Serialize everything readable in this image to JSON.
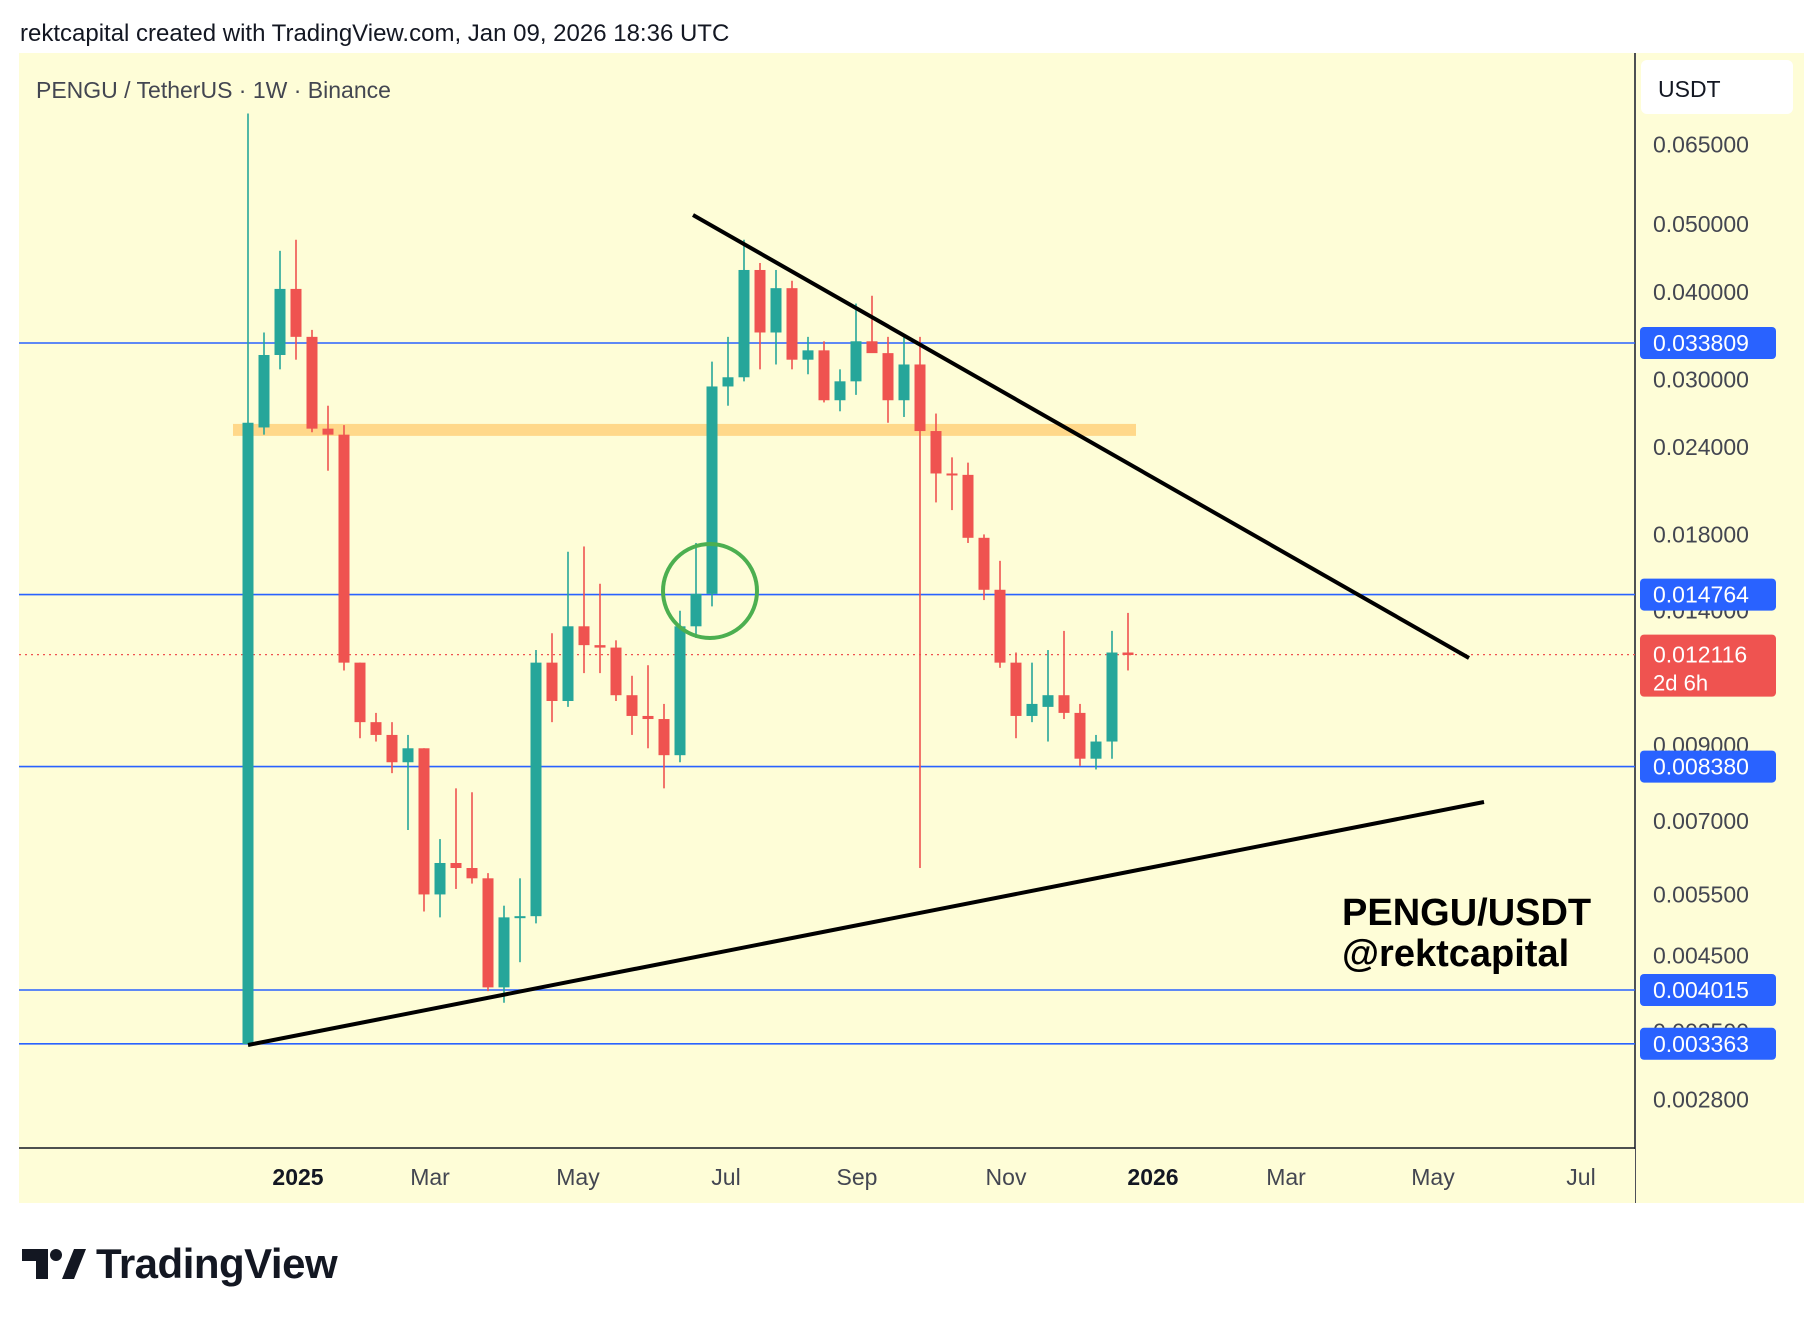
{
  "header": {
    "caption": "rektcapital created with TradingView.com, Jan 09, 2026 18:36 UTC"
  },
  "symbol_line": "PENGU / TetherUS · 1W · Binance",
  "currency_button": "USDT",
  "watermark": {
    "line1": "PENGU/USDT",
    "line2": "@rektcapital"
  },
  "brand": "TradingView",
  "colors": {
    "background": "#FEFDD7",
    "up": "#26A69A",
    "down": "#EF5350",
    "hline": "#2962FF",
    "label": "#2962FF",
    "zone": "#FFD88A",
    "circle": "#4CAF50",
    "trend": "#000000"
  },
  "chart_data": {
    "type": "candlestick",
    "scale": "log",
    "symbol": "PENGU / TetherUS",
    "interval": "1W",
    "exchange": "Binance",
    "y_ticks": [
      "0.065000",
      "0.050000",
      "0.040000",
      "0.030000",
      "0.024000",
      "0.018000",
      "0.014000",
      "0.009000",
      "0.007000",
      "0.005500",
      "0.004500",
      "0.003500",
      "0.002800"
    ],
    "x_ticks": [
      {
        "label": "2025",
        "bold": true
      },
      {
        "label": "Mar",
        "bold": false
      },
      {
        "label": "May",
        "bold": false
      },
      {
        "label": "Jul",
        "bold": false
      },
      {
        "label": "Sep",
        "bold": false
      },
      {
        "label": "Nov",
        "bold": false
      },
      {
        "label": "2026",
        "bold": true
      },
      {
        "label": "Mar",
        "bold": false
      },
      {
        "label": "May",
        "bold": false
      },
      {
        "label": "Jul",
        "bold": false
      }
    ],
    "horizontal_levels": [
      "0.033809",
      "0.014764",
      "0.008380",
      "0.004015",
      "0.003363"
    ],
    "current_price": {
      "value": "0.012116",
      "countdown": "2d 6h"
    },
    "resistance_zone": [
      0.0249,
      0.0259
    ],
    "candles": [
      {
        "o": 0.00336,
        "h": 0.072,
        "l": 0.00336,
        "c": 0.026
      },
      {
        "o": 0.0256,
        "h": 0.035,
        "l": 0.025,
        "c": 0.0325
      },
      {
        "o": 0.0325,
        "h": 0.0458,
        "l": 0.031,
        "c": 0.0404
      },
      {
        "o": 0.0404,
        "h": 0.0475,
        "l": 0.032,
        "c": 0.0345
      },
      {
        "o": 0.0345,
        "h": 0.0353,
        "l": 0.0252,
        "c": 0.0255
      },
      {
        "o": 0.0255,
        "h": 0.0275,
        "l": 0.0222,
        "c": 0.025
      },
      {
        "o": 0.025,
        "h": 0.0258,
        "l": 0.0115,
        "c": 0.0118
      },
      {
        "o": 0.0118,
        "h": 0.0118,
        "l": 0.0092,
        "c": 0.0097
      },
      {
        "o": 0.0097,
        "h": 0.01,
        "l": 0.0091,
        "c": 0.0093
      },
      {
        "o": 0.0093,
        "h": 0.0097,
        "l": 0.0082,
        "c": 0.0085
      },
      {
        "o": 0.0085,
        "h": 0.0093,
        "l": 0.0068,
        "c": 0.0089
      },
      {
        "o": 0.0089,
        "h": 0.0089,
        "l": 0.0052,
        "c": 0.0055
      },
      {
        "o": 0.0055,
        "h": 0.0066,
        "l": 0.0051,
        "c": 0.0061
      },
      {
        "o": 0.0061,
        "h": 0.0078,
        "l": 0.0056,
        "c": 0.006
      },
      {
        "o": 0.006,
        "h": 0.0077,
        "l": 0.0057,
        "c": 0.0058
      },
      {
        "o": 0.0058,
        "h": 0.0059,
        "l": 0.004,
        "c": 0.00405
      },
      {
        "o": 0.00405,
        "h": 0.0053,
        "l": 0.00385,
        "c": 0.0051
      },
      {
        "o": 0.0051,
        "h": 0.0058,
        "l": 0.0044,
        "c": 0.00512
      },
      {
        "o": 0.00512,
        "h": 0.0123,
        "l": 0.005,
        "c": 0.0118
      },
      {
        "o": 0.0118,
        "h": 0.013,
        "l": 0.0097,
        "c": 0.0104
      },
      {
        "o": 0.0104,
        "h": 0.017,
        "l": 0.0102,
        "c": 0.0133
      },
      {
        "o": 0.0133,
        "h": 0.0173,
        "l": 0.0114,
        "c": 0.0125
      },
      {
        "o": 0.0125,
        "h": 0.0153,
        "l": 0.0114,
        "c": 0.0124
      },
      {
        "o": 0.0124,
        "h": 0.0127,
        "l": 0.0104,
        "c": 0.0106
      },
      {
        "o": 0.0106,
        "h": 0.0113,
        "l": 0.0093,
        "c": 0.0099
      },
      {
        "o": 0.0099,
        "h": 0.0117,
        "l": 0.0089,
        "c": 0.0098
      },
      {
        "o": 0.0098,
        "h": 0.0103,
        "l": 0.0078,
        "c": 0.0087
      },
      {
        "o": 0.0087,
        "h": 0.014,
        "l": 0.0085,
        "c": 0.0133
      },
      {
        "o": 0.0133,
        "h": 0.0175,
        "l": 0.0128,
        "c": 0.0148
      },
      {
        "o": 0.0148,
        "h": 0.0318,
        "l": 0.0142,
        "c": 0.0293
      },
      {
        "o": 0.0293,
        "h": 0.0345,
        "l": 0.0275,
        "c": 0.0302
      },
      {
        "o": 0.0302,
        "h": 0.0475,
        "l": 0.0298,
        "c": 0.043
      },
      {
        "o": 0.043,
        "h": 0.044,
        "l": 0.031,
        "c": 0.035
      },
      {
        "o": 0.035,
        "h": 0.043,
        "l": 0.0315,
        "c": 0.0405
      },
      {
        "o": 0.0405,
        "h": 0.0415,
        "l": 0.031,
        "c": 0.032
      },
      {
        "o": 0.032,
        "h": 0.0345,
        "l": 0.0305,
        "c": 0.033
      },
      {
        "o": 0.033,
        "h": 0.034,
        "l": 0.0278,
        "c": 0.028
      },
      {
        "o": 0.028,
        "h": 0.031,
        "l": 0.027,
        "c": 0.0298
      },
      {
        "o": 0.0298,
        "h": 0.0385,
        "l": 0.0285,
        "c": 0.034
      },
      {
        "o": 0.034,
        "h": 0.0395,
        "l": 0.033,
        "c": 0.0327
      },
      {
        "o": 0.0327,
        "h": 0.0345,
        "l": 0.026,
        "c": 0.028
      },
      {
        "o": 0.028,
        "h": 0.0345,
        "l": 0.0265,
        "c": 0.0315
      },
      {
        "o": 0.0315,
        "h": 0.0345,
        "l": 0.006,
        "c": 0.0253
      },
      {
        "o": 0.0253,
        "h": 0.0268,
        "l": 0.02,
        "c": 0.022
      },
      {
        "o": 0.022,
        "h": 0.0232,
        "l": 0.0195,
        "c": 0.0219
      },
      {
        "o": 0.0219,
        "h": 0.0228,
        "l": 0.0175,
        "c": 0.0178
      },
      {
        "o": 0.0178,
        "h": 0.018,
        "l": 0.0145,
        "c": 0.015
      },
      {
        "o": 0.015,
        "h": 0.0165,
        "l": 0.0116,
        "c": 0.0118
      },
      {
        "o": 0.0118,
        "h": 0.0122,
        "l": 0.0092,
        "c": 0.0099
      },
      {
        "o": 0.0099,
        "h": 0.0118,
        "l": 0.0097,
        "c": 0.0103
      },
      {
        "o": 0.0102,
        "h": 0.0123,
        "l": 0.0091,
        "c": 0.0106
      },
      {
        "o": 0.0106,
        "h": 0.0131,
        "l": 0.0098,
        "c": 0.01
      },
      {
        "o": 0.01,
        "h": 0.0103,
        "l": 0.0084,
        "c": 0.0086
      },
      {
        "o": 0.0086,
        "h": 0.0093,
        "l": 0.0083,
        "c": 0.0091
      },
      {
        "o": 0.0091,
        "h": 0.0131,
        "l": 0.0086,
        "c": 0.0122
      },
      {
        "o": 0.0122,
        "h": 0.0139,
        "l": 0.0115,
        "c": 0.0121
      }
    ]
  }
}
